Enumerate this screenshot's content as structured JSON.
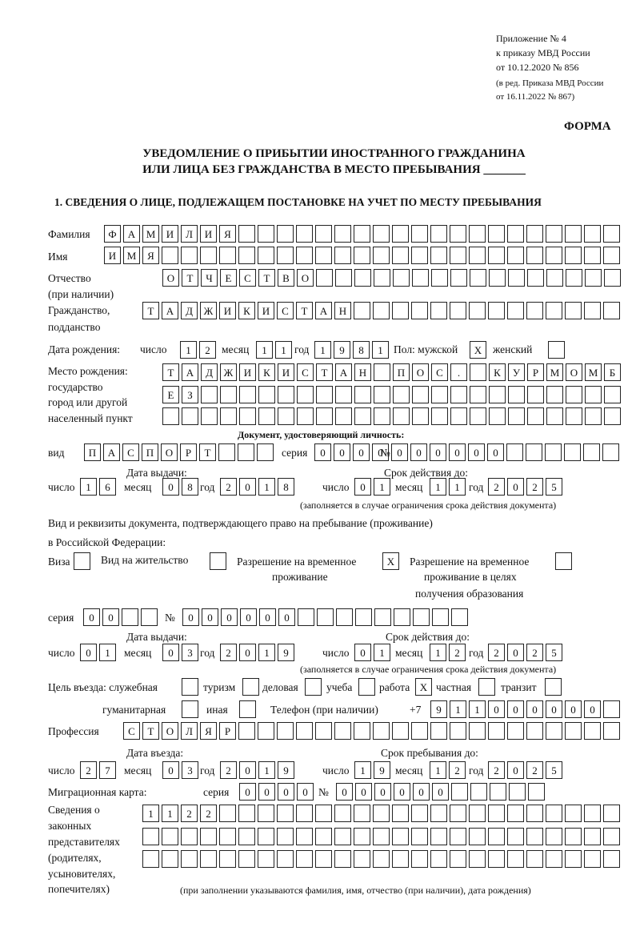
{
  "header": {
    "line1": "Приложение № 4",
    "line2": "к приказу МВД России",
    "line3": "от 10.12.2020 № 856",
    "line4": "(в ред. Приказа МВД России",
    "line5": "от 16.11.2022 № 867)",
    "forma": "ФОРМА"
  },
  "title": {
    "line1": "УВЕДОМЛЕНИЕ О ПРИБЫТИИ ИНОСТРАННОГО ГРАЖДАНИНА",
    "line2": "ИЛИ ЛИЦА БЕЗ ГРАЖДАНСТВА В МЕСТО ПРЕБЫВАНИЯ _______"
  },
  "section1": {
    "heading": "1. СВЕДЕНИЯ О ЛИЦЕ, ПОДЛЕЖАЩЕМ ПОСТАНОВКЕ НА УЧЕТ ПО МЕСТУ ПРЕБЫВАНИЯ",
    "labels": {
      "surname": "Фамилия",
      "name": "Имя",
      "patronymic": "Отчество",
      "patronymic2": "(при наличии)",
      "citizenship": "Гражданство,",
      "citizenship2": "подданство",
      "birth_date": "Дата рождения:",
      "day": "число",
      "month": "месяц",
      "year": "год",
      "sex": "Пол: мужской",
      "female": "женский",
      "birth_place": "Место рождения:",
      "bp2": "государство",
      "bp3": "город или другой",
      "bp4": "населенный пункт",
      "id_doc": "Документ, удостоверяющий личность:",
      "kind": "вид",
      "series": "серия",
      "number": "№",
      "issue_date": "Дата выдачи:",
      "valid_until": "Срок действия до:",
      "valid_note": "(заполняется в случае ограничения срока действия документа)",
      "right_doc": "Вид и реквизиты документа, подтверждающего право на пребывание (проживание)",
      "right_doc2": "в Российской Федерации:",
      "visa": "Виза",
      "residence": "Вид на жительство",
      "trp1": "Разрешение на временное",
      "trp2": "проживание",
      "trpe1": "Разрешение на временное",
      "trpe2": "проживание в целях",
      "trpe3": "получения образования",
      "purpose": "Цель въезда: служебная",
      "tourism": "туризм",
      "business": "деловая",
      "study": "учеба",
      "work": "работа",
      "private": "частная",
      "transit": "транзит",
      "humanitarian": "гуманитарная",
      "other": "иная",
      "phone": "Телефон (при наличии)",
      "phone_prefix": "+7",
      "profession": "Профессия",
      "entry_date": "Дата въезда:",
      "stay_until": "Срок пребывания до:",
      "migration_card": "Миграционная карта:",
      "reps1": "Сведения о",
      "reps2": "законных",
      "reps3": "представителях",
      "reps4": "(родителях,",
      "reps5": "усыновителях,",
      "reps6": "попечителях)",
      "reps_note": "(при заполнении указываются фамилия, имя, отчество (при наличии), дата рождения)"
    },
    "values": {
      "surname": "ФАМИЛИЯ",
      "name": "ИМЯ",
      "patronymic": "ОТЧЕСТВО",
      "citizenship": "ТАДЖИКИСТАН",
      "birth_day": "12",
      "birth_month": "11",
      "birth_year": "1981",
      "male": "X",
      "female": "",
      "birth_place1": "ТАДЖИКИСТАН ПОС. КУРМОМБ",
      "birth_place2": "ЕЗ",
      "birth_place3": "",
      "doc_kind": "ПАСПОРТ",
      "doc_series": "0000",
      "doc_number": "000000",
      "doc_issue_day": "16",
      "doc_issue_month": "08",
      "doc_issue_year": "2018",
      "doc_valid_day": "01",
      "doc_valid_month": "11",
      "doc_valid_year": "2025",
      "visa": "",
      "residence": "",
      "trp": "X",
      "trpe": "",
      "rdoc_series": "00",
      "rdoc_number": "000000",
      "rdoc_issue_day": "01",
      "rdoc_issue_month": "03",
      "rdoc_issue_year": "2019",
      "rdoc_valid_day": "01",
      "rdoc_valid_month": "12",
      "rdoc_valid_year": "2025",
      "p_service": "",
      "p_tourism": "",
      "p_business": "",
      "p_study": "",
      "p_work": "X",
      "p_private": "",
      "p_transit": "",
      "p_humanitarian": "",
      "p_other": "",
      "phone": "911000000",
      "profession": "СТОЛЯР",
      "entry_day": "27",
      "entry_month": "03",
      "entry_year": "2019",
      "stay_day": "19",
      "stay_month": "12",
      "stay_year": "2025",
      "mc_series": "0000",
      "mc_number": "000000",
      "reps1": "1122",
      "reps2": "",
      "reps3": ""
    }
  }
}
